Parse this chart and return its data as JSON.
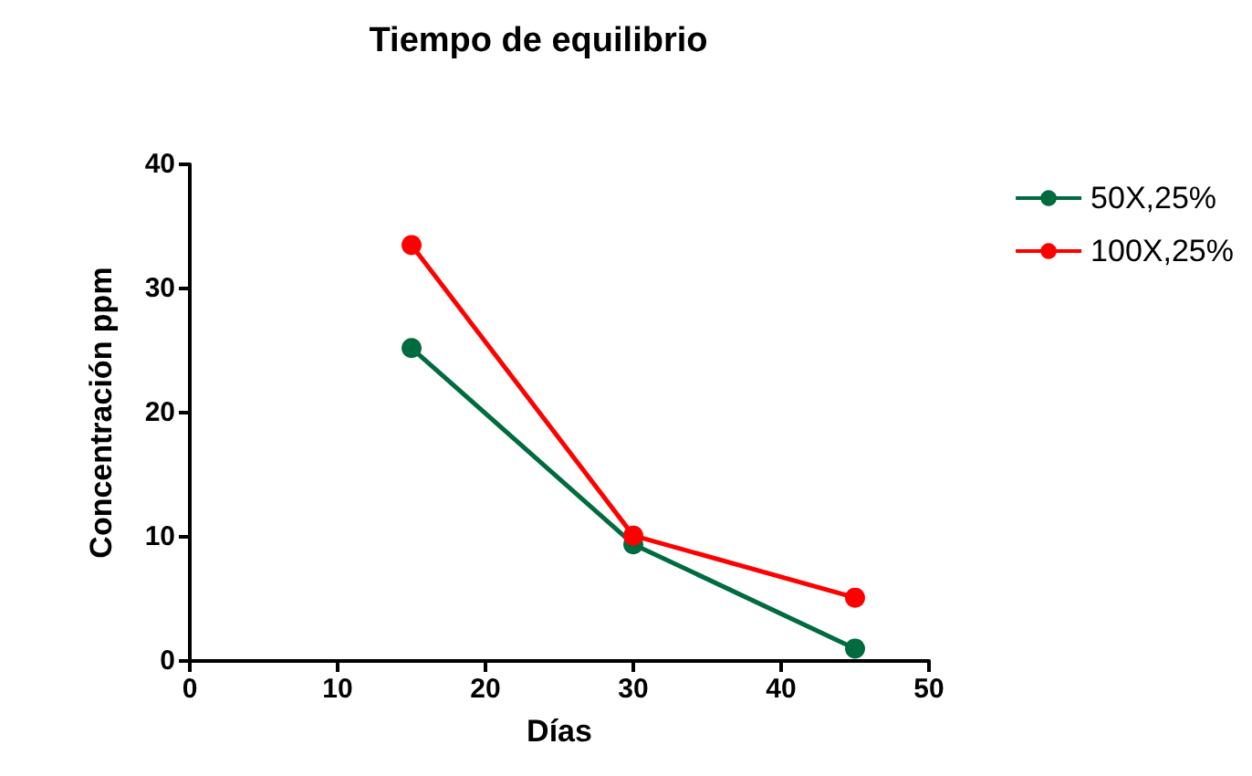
{
  "chart_data": {
    "type": "line",
    "title": "Tiempo de equilibrio",
    "xlabel": "Días",
    "ylabel": "Concentración ppm",
    "x": [
      15,
      30,
      45
    ],
    "series": [
      {
        "name": "50X,25%",
        "color": "#006b3f",
        "values": [
          25.2,
          9.4,
          1.0
        ]
      },
      {
        "name": "100X,25%",
        "color": "#ff0000",
        "values": [
          33.5,
          10.1,
          5.1
        ]
      }
    ],
    "xlim": [
      0,
      50
    ],
    "xticks": [
      0,
      10,
      20,
      30,
      40,
      50
    ],
    "ylim": [
      0,
      40
    ],
    "yticks": [
      0,
      10,
      20,
      30,
      40
    ],
    "grid": false,
    "legend": "top right",
    "marker": "circle",
    "line_style": "solid"
  }
}
